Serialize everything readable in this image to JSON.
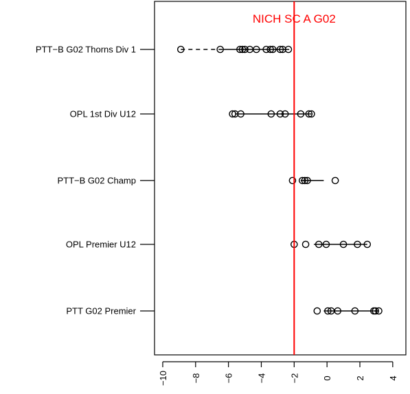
{
  "chart_data": {
    "type": "scatter",
    "title": "",
    "xlabel": "",
    "ylabel": "",
    "xlim": [
      -10.5,
      4.8
    ],
    "x_ticks": [
      -10,
      -8,
      -6,
      -4,
      -2,
      0,
      2,
      4
    ],
    "x_tick_labels": [
      "−10",
      "−8",
      "−6",
      "−4",
      "−2",
      "0",
      "2",
      "4"
    ],
    "reference_line": {
      "x": -2.0,
      "label": "NICH SC A G02",
      "color": "#ff0000"
    },
    "grid": false,
    "categories": [
      "PTT−B G02 Thorns Div 1",
      "OPL 1st Div U12",
      "PTT−B G02 Champ",
      "OPL Premier U12",
      "PTT G02 Premier"
    ],
    "series": [
      {
        "category": "PTT−B G02 Thorns Div 1",
        "points": [
          -8.9,
          -6.5,
          -5.3,
          -5.15,
          -5.0,
          -4.7,
          -4.3,
          -3.7,
          -3.45,
          -3.3,
          -2.85,
          -2.7,
          -2.35
        ],
        "interval": [
          -6.3,
          -2.3
        ],
        "whisker_dashed": [
          -8.9,
          -6.3
        ]
      },
      {
        "category": "OPL 1st Div U12",
        "points": [
          -5.75,
          -5.6,
          -5.25,
          -3.4,
          -2.85,
          -2.55,
          -1.6,
          -1.1,
          -0.95
        ],
        "interval": [
          -5.6,
          -0.95
        ]
      },
      {
        "category": "PTT−B G02 Champ",
        "points": [
          -2.1,
          -1.5,
          -1.35,
          -1.2,
          0.5
        ],
        "interval": [
          -1.6,
          -0.2
        ]
      },
      {
        "category": "OPL Premier U12",
        "points": [
          -2.0,
          -1.3,
          -0.5,
          -0.05,
          1.0,
          1.85,
          2.45
        ],
        "interval": [
          -0.8,
          2.45
        ]
      },
      {
        "category": "PTT G02 Premier",
        "points": [
          -0.6,
          0.05,
          0.25,
          0.65,
          1.7,
          2.85,
          2.95,
          3.15
        ],
        "interval": [
          -0.2,
          3.15
        ]
      }
    ]
  }
}
